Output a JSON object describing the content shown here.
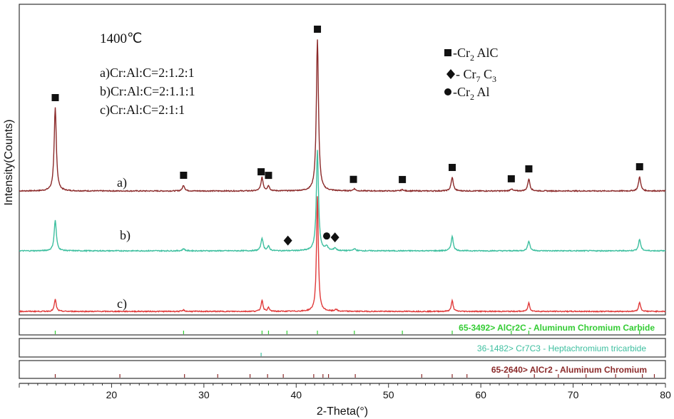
{
  "chart_data": {
    "type": "line",
    "xlabel": "2-Theta(°)",
    "ylabel": "Intensity(Counts)",
    "xlim": [
      10,
      80
    ],
    "x_ticks": [
      20,
      30,
      40,
      50,
      60,
      70,
      80
    ],
    "grid": false,
    "temperature_label": "1400℃",
    "composition_labels": [
      "a)Cr:Al:C=2:1.2:1",
      "b)Cr:Al:C=2:1.1:1",
      "c)Cr:Al:C=2:1:1"
    ],
    "legend": {
      "position": "top-right",
      "entries": [
        {
          "marker": "square",
          "label_main": "-Cr",
          "sub1": "2",
          "mid": " AlC",
          "sub2": ""
        },
        {
          "marker": "diamond",
          "label_main": "- Cr",
          "sub1": "7",
          "mid": " C",
          "sub2": "3"
        },
        {
          "marker": "circle",
          "label_main": "-Cr",
          "sub1": "2",
          "mid": " Al",
          "sub2": ""
        }
      ]
    },
    "series": [
      {
        "name": "a)",
        "color": "#8b2a2a",
        "peaks": [
          [
            13.9,
            117
          ],
          [
            27.8,
            8
          ],
          [
            36.3,
            19
          ],
          [
            37.0,
            7
          ],
          [
            42.3,
            213
          ],
          [
            46.3,
            3
          ],
          [
            51.5,
            2
          ],
          [
            56.9,
            19
          ],
          [
            63.3,
            3
          ],
          [
            65.2,
            17
          ],
          [
            77.2,
            20
          ]
        ]
      },
      {
        "name": "b)",
        "color": "#3dbf9f",
        "peaks": [
          [
            13.9,
            43
          ],
          [
            27.8,
            3
          ],
          [
            36.3,
            18
          ],
          [
            37.0,
            6
          ],
          [
            42.3,
            141
          ],
          [
            43.3,
            6
          ],
          [
            44.2,
            4
          ],
          [
            46.3,
            3
          ],
          [
            56.9,
            20
          ],
          [
            65.2,
            14
          ],
          [
            77.2,
            16
          ]
        ]
      },
      {
        "name": "c)",
        "color": "#e03a3a",
        "peaks": [
          [
            13.9,
            17
          ],
          [
            27.8,
            2
          ],
          [
            36.3,
            16
          ],
          [
            37.0,
            5
          ],
          [
            42.3,
            161
          ],
          [
            44.3,
            3
          ],
          [
            56.9,
            15
          ],
          [
            65.2,
            12
          ],
          [
            77.2,
            13
          ]
        ]
      }
    ],
    "phase_markers": [
      {
        "shape": "square",
        "x": 13.9,
        "series": 0
      },
      {
        "shape": "square",
        "x": 27.8,
        "series": 0
      },
      {
        "shape": "square",
        "x": 36.2,
        "series": 0
      },
      {
        "shape": "square",
        "x": 37.0,
        "series": 0
      },
      {
        "shape": "square",
        "x": 42.3,
        "series": 0
      },
      {
        "shape": "square",
        "x": 46.2,
        "series": 0
      },
      {
        "shape": "square",
        "x": 51.5,
        "series": 0
      },
      {
        "shape": "square",
        "x": 56.9,
        "series": 0
      },
      {
        "shape": "square",
        "x": 63.3,
        "series": 0
      },
      {
        "shape": "square",
        "x": 65.2,
        "series": 0
      },
      {
        "shape": "square",
        "x": 77.2,
        "series": 0
      },
      {
        "shape": "diamond",
        "x": 39.1,
        "series": 1
      },
      {
        "shape": "circle",
        "x": 43.3,
        "series": 1
      },
      {
        "shape": "diamond",
        "x": 44.2,
        "series": 1
      }
    ],
    "reference_patterns": [
      {
        "label": "65-3492> AlCr2C - Aluminum Chromium Carbide",
        "color": "#33cc33",
        "lines": [
          13.9,
          27.8,
          36.3,
          37.0,
          39.0,
          42.3,
          46.3,
          51.5,
          56.9,
          63.3,
          65.2,
          77.2
        ]
      },
      {
        "label": "36-1482> Cr7C3 - Heptachromium tricarbide",
        "color": "#3dbf9f",
        "lines": [
          36.2
        ]
      },
      {
        "label": "65-2640> AlCr2 - Aluminum Chromium",
        "color": "#8b2a2a",
        "lines": [
          13.9,
          20.9,
          27.9,
          31.5,
          35.0,
          36.9,
          38.6,
          41.9,
          42.9,
          43.5,
          46.4,
          53.6,
          56.9,
          58.5,
          63.0,
          65.8,
          68.4,
          71.4,
          74.6,
          77.5,
          78.8
        ]
      }
    ]
  }
}
